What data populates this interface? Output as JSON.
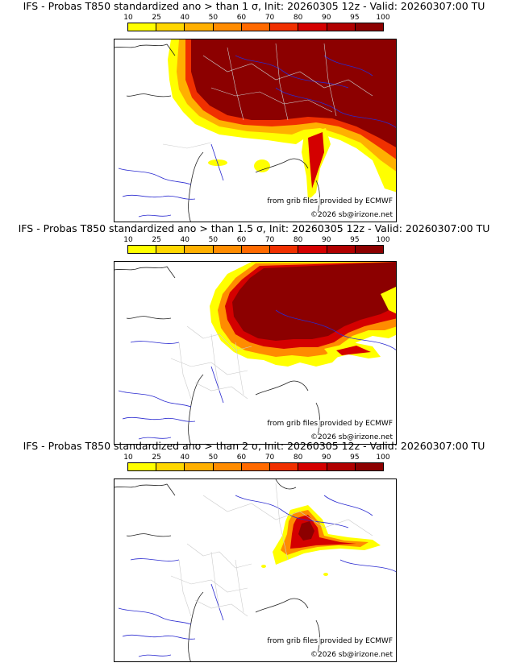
{
  "scale": {
    "ticks": [
      "10",
      "25",
      "40",
      "50",
      "60",
      "70",
      "80",
      "90",
      "95",
      "100"
    ],
    "colors": [
      "#ffff00",
      "#ffd700",
      "#ffb000",
      "#ff8c00",
      "#ff6a00",
      "#f03000",
      "#d40000",
      "#b00000",
      "#8c0000"
    ]
  },
  "credits": {
    "source": "from grib files provided by ECMWF",
    "copyright": "©2026 sb@irizone.net"
  },
  "panels": [
    {
      "title": "IFS - Probas T850  standardized ano > than 1 σ, Init: 20260305 12z - Valid: 20260307:00 TU"
    },
    {
      "title": "IFS - Probas T850  standardized ano > than 1.5 σ, Init: 20260305 12z - Valid: 20260307:00 TU"
    },
    {
      "title": "IFS - Probas T850  standardized ano > than 2 σ, Init: 20260305 12z - Valid: 20260307:00 TU"
    }
  ]
}
